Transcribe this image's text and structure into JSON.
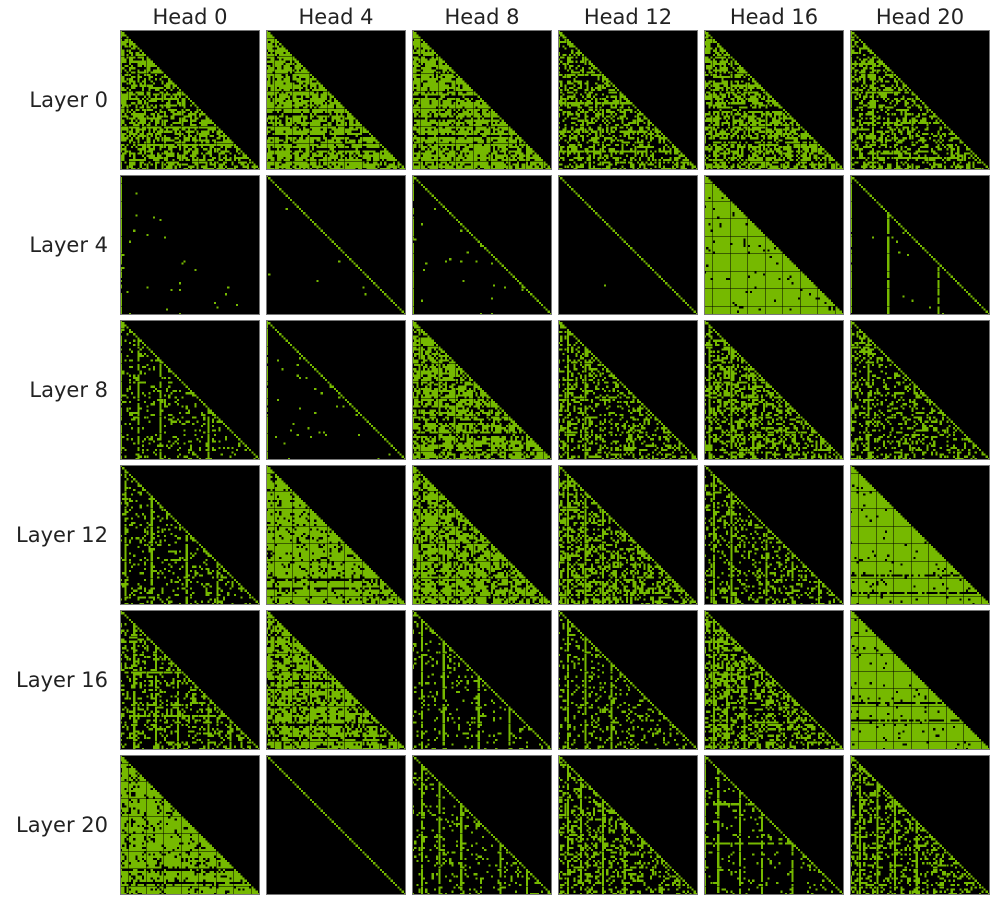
{
  "chart_data": {
    "type": "heatmap",
    "column_labels": [
      "Head 0",
      "Head 4",
      "Head 8",
      "Head 12",
      "Head 16",
      "Head 20"
    ],
    "row_labels": [
      "Layer 0",
      "Layer 4",
      "Layer 8",
      "Layer 12",
      "Layer 16",
      "Layer 20"
    ],
    "matrix_size": 64,
    "causal_mask": "lower-triangular",
    "colors": {
      "active": "#76b900",
      "inactive": "#000000",
      "border": "#777777"
    },
    "panels": [
      [
        {
          "fill": 0.55,
          "diagonal": true,
          "vlines": [
            0
          ],
          "hlines": [
            14,
            31,
            44,
            52
          ],
          "seed": 11
        },
        {
          "fill": 0.78,
          "diagonal": true,
          "vlines": [],
          "hlines": [
            38,
            48,
            54
          ],
          "seed": 12
        },
        {
          "fill": 0.8,
          "diagonal": true,
          "vlines": [],
          "hlines": [
            30,
            40,
            48
          ],
          "seed": 13
        },
        {
          "fill": 0.45,
          "diagonal": true,
          "vlines": [],
          "hlines": [
            20,
            33,
            46,
            55
          ],
          "seed": 14
        },
        {
          "fill": 0.62,
          "diagonal": true,
          "vlines": [],
          "hlines": [
            22,
            36,
            50
          ],
          "seed": 15
        },
        {
          "fill": 0.42,
          "diagonal": true,
          "vlines": [
            0,
            10
          ],
          "hlines": [
            15,
            28,
            42,
            58
          ],
          "seed": 16
        }
      ],
      [
        {
          "fill": 0.0,
          "diagonal": false,
          "vlines": [
            0
          ],
          "hlines": [],
          "dots": 0.012,
          "seed": 21
        },
        {
          "fill": 0.0,
          "diagonal": true,
          "vlines": [],
          "hlines": [],
          "dots": 0.002,
          "seed": 22
        },
        {
          "fill": 0.0,
          "diagonal": true,
          "vlines": [
            0
          ],
          "hlines": [],
          "dots": 0.01,
          "seed": 23
        },
        {
          "fill": 0.0,
          "diagonal": true,
          "vlines": [],
          "hlines": [],
          "dots": 0.001,
          "seed": 24
        },
        {
          "fill": 0.97,
          "diagonal": true,
          "vlines": [],
          "hlines": [],
          "dots": 0.0,
          "seed": 25
        },
        {
          "fill": 0.0,
          "diagonal": true,
          "vlines": [
            0,
            17,
            40
          ],
          "hlines": [],
          "dots": 0.004,
          "seed": 26
        }
      ],
      [
        {
          "fill": 0.15,
          "diagonal": true,
          "vlines": [
            0,
            8,
            18,
            40
          ],
          "hlines": [],
          "seed": 31
        },
        {
          "fill": 0.02,
          "diagonal": true,
          "vlines": [
            0
          ],
          "hlines": [],
          "seed": 32
        },
        {
          "fill": 0.7,
          "diagonal": true,
          "vlines": [],
          "hlines": [
            40,
            46,
            52
          ],
          "seed": 33
        },
        {
          "fill": 0.32,
          "diagonal": true,
          "vlines": [
            4,
            12
          ],
          "hlines": [],
          "seed": 34
        },
        {
          "fill": 0.42,
          "diagonal": true,
          "vlines": [
            2,
            12,
            22
          ],
          "hlines": [],
          "seed": 35
        },
        {
          "fill": 0.3,
          "diagonal": true,
          "vlines": [
            0,
            8
          ],
          "hlines": [],
          "seed": 36
        }
      ],
      [
        {
          "fill": 0.18,
          "diagonal": true,
          "vlines": [
            2,
            14,
            30,
            44
          ],
          "hlines": [],
          "seed": 41
        },
        {
          "fill": 0.86,
          "diagonal": true,
          "vlines": [],
          "hlines": [
            52,
            56
          ],
          "seed": 42
        },
        {
          "fill": 0.7,
          "diagonal": true,
          "vlines": [
            8,
            16,
            24,
            32
          ],
          "hlines": [],
          "seed": 43
        },
        {
          "fill": 0.42,
          "diagonal": true,
          "vlines": [
            4,
            12,
            20
          ],
          "hlines": [],
          "seed": 44
        },
        {
          "fill": 0.25,
          "diagonal": true,
          "vlines": [
            4,
            12,
            28,
            40,
            52
          ],
          "hlines": [],
          "seed": 45
        },
        {
          "fill": 0.96,
          "diagonal": true,
          "vlines": [],
          "hlines": [
            50,
            58
          ],
          "seed": 46
        }
      ],
      [
        {
          "fill": 0.3,
          "diagonal": true,
          "vlines": [
            6,
            16,
            26,
            40,
            50
          ],
          "hlines": [
            28,
            48
          ],
          "seed": 51
        },
        {
          "fill": 0.72,
          "diagonal": true,
          "vlines": [
            8,
            20,
            30
          ],
          "hlines": [
            32,
            52,
            58
          ],
          "seed": 52
        },
        {
          "fill": 0.12,
          "diagonal": true,
          "vlines": [
            4,
            14,
            30,
            44
          ],
          "hlines": [],
          "seed": 53
        },
        {
          "fill": 0.18,
          "diagonal": true,
          "vlines": [
            4,
            12,
            24
          ],
          "hlines": [],
          "seed": 54
        },
        {
          "fill": 0.45,
          "diagonal": true,
          "vlines": [
            4,
            10,
            18
          ],
          "hlines": [],
          "seed": 55
        },
        {
          "fill": 0.96,
          "diagonal": true,
          "vlines": [],
          "hlines": [
            42,
            50
          ],
          "seed": 56
        }
      ],
      [
        {
          "fill": 0.86,
          "diagonal": true,
          "vlines": [],
          "hlines": [
            52,
            58
          ],
          "seed": 61
        },
        {
          "fill": 0.0,
          "diagonal": true,
          "vlines": [],
          "hlines": [],
          "seed": 62
        },
        {
          "fill": 0.12,
          "diagonal": true,
          "vlines": [
            4,
            12,
            22,
            40,
            52
          ],
          "hlines": [],
          "seed": 63
        },
        {
          "fill": 0.28,
          "diagonal": true,
          "vlines": [
            4,
            10,
            20,
            30
          ],
          "hlines": [],
          "seed": 64
        },
        {
          "fill": 0.08,
          "diagonal": true,
          "vlines": [
            0,
            6,
            16,
            26,
            40
          ],
          "hlines": [
            22,
            40
          ],
          "seed": 65
        },
        {
          "fill": 0.3,
          "diagonal": true,
          "vlines": [
            4,
            12,
            20,
            30
          ],
          "hlines": [],
          "seed": 66
        }
      ]
    ]
  }
}
